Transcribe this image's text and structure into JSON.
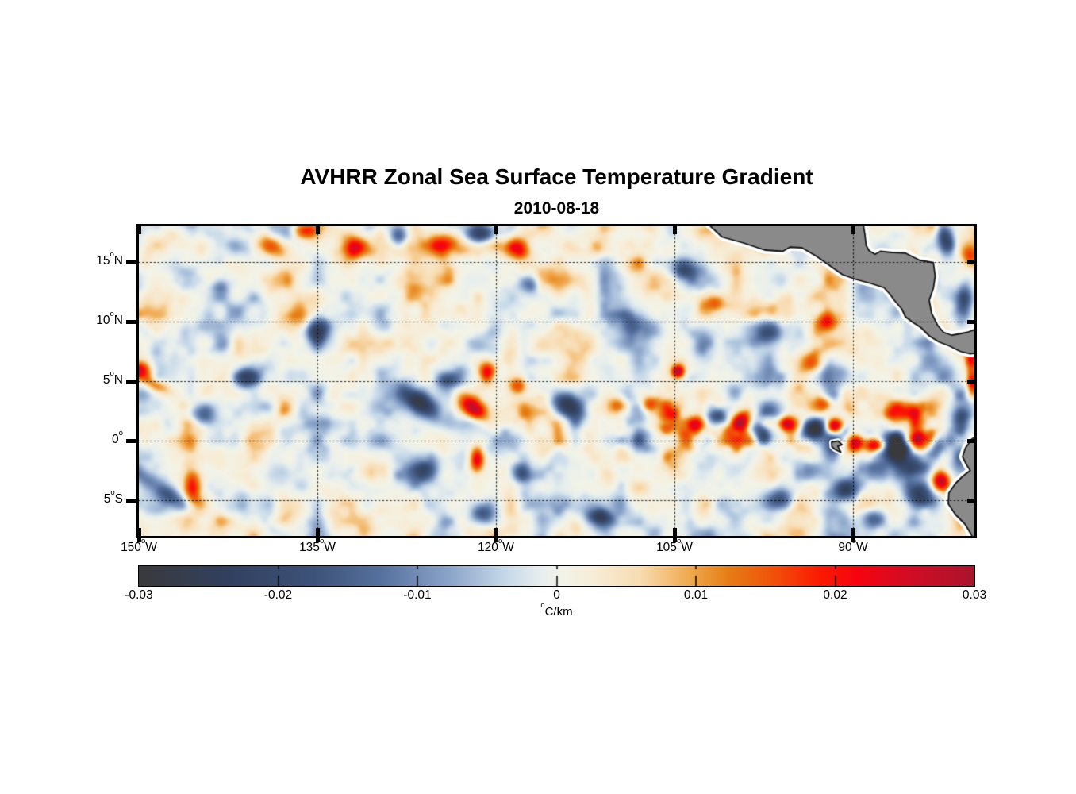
{
  "chart_data": {
    "type": "heatmap",
    "title": "AVHRR Zonal Sea Surface Temperature Gradient",
    "date": "2010-08-18",
    "units_label": "°C/km",
    "lon_range": [
      -150.0,
      -79.8
    ],
    "lat_range": [
      -8.0,
      18.0
    ],
    "grid_lons": [
      -135,
      -120,
      -105,
      -90
    ],
    "grid_lats": [
      15,
      10,
      5,
      0,
      -5
    ],
    "x_ticks": [
      {
        "lon": -150,
        "num": "150",
        "sup": "o",
        "suffix": "W"
      },
      {
        "lon": -135,
        "num": "135",
        "sup": "o",
        "suffix": "W"
      },
      {
        "lon": -120,
        "num": "120",
        "sup": "o",
        "suffix": "W"
      },
      {
        "lon": -105,
        "num": "105",
        "sup": "o",
        "suffix": "W"
      },
      {
        "lon": -90,
        "num": "90",
        "sup": "o",
        "suffix": "W"
      }
    ],
    "y_ticks": [
      {
        "lat": 15,
        "num": "15",
        "sup": "o",
        "suffix": "N"
      },
      {
        "lat": 10,
        "num": "10",
        "sup": "o",
        "suffix": "N"
      },
      {
        "lat": 5,
        "num": "5",
        "sup": "o",
        "suffix": "N"
      },
      {
        "lat": 0,
        "num": "0",
        "sup": "o",
        "suffix": ""
      },
      {
        "lat": -5,
        "num": "5",
        "sup": "o",
        "suffix": "S"
      }
    ],
    "colorbar": {
      "min": -0.03,
      "max": 0.03,
      "tick_values": [
        -0.03,
        -0.02,
        -0.01,
        0,
        0.01,
        0.02,
        0.03
      ],
      "tick_labels": [
        "-0.03",
        "-0.02",
        "-0.01",
        "0",
        "0.01",
        "0.02",
        "0.03"
      ],
      "unit_sup": "o",
      "unit_text": "C/km",
      "stops": [
        [
          0.0,
          "#3a3a3c"
        ],
        [
          0.105,
          "#32405f"
        ],
        [
          0.21,
          "#3d5379"
        ],
        [
          0.29,
          "#56719f"
        ],
        [
          0.37,
          "#8aa3c9"
        ],
        [
          0.435,
          "#c3d6e8"
        ],
        [
          0.48,
          "#e7eeee"
        ],
        [
          0.505,
          "#f2f3e8"
        ],
        [
          0.54,
          "#f7eeda"
        ],
        [
          0.6,
          "#f8dcb2"
        ],
        [
          0.66,
          "#f0a94e"
        ],
        [
          0.705,
          "#e67e15"
        ],
        [
          0.76,
          "#f1510a"
        ],
        [
          0.815,
          "#fb1a02"
        ],
        [
          0.86,
          "#f60410"
        ],
        [
          0.92,
          "#d30c24"
        ],
        [
          1.0,
          "#a9152d"
        ]
      ]
    },
    "land": {
      "fill": "#8a8a8a",
      "edge": "#141414",
      "halo": "#ffffff",
      "central_america": [
        [
          -102.6,
          19.5
        ],
        [
          -102.2,
          18.2
        ],
        [
          -101.0,
          17.1
        ],
        [
          -99.2,
          16.6
        ],
        [
          -97.4,
          16.0
        ],
        [
          -95.9,
          15.9
        ],
        [
          -95.3,
          16.25
        ],
        [
          -94.3,
          16.2
        ],
        [
          -93.1,
          15.5
        ],
        [
          -92.1,
          14.8
        ],
        [
          -90.9,
          13.95
        ],
        [
          -89.8,
          13.55
        ],
        [
          -88.5,
          13.2
        ],
        [
          -87.4,
          12.85
        ],
        [
          -86.9,
          12.3
        ],
        [
          -86.5,
          11.75
        ],
        [
          -85.9,
          11.05
        ],
        [
          -85.6,
          10.4
        ],
        [
          -85.0,
          9.95
        ],
        [
          -84.3,
          9.5
        ],
        [
          -83.6,
          8.8
        ],
        [
          -82.8,
          8.3
        ],
        [
          -81.9,
          7.95
        ],
        [
          -81.0,
          7.5
        ],
        [
          -80.2,
          7.3
        ],
        [
          -79.0,
          7.4
        ],
        [
          -79.0,
          9.6
        ],
        [
          -80.4,
          9.1
        ],
        [
          -81.7,
          8.85
        ],
        [
          -82.4,
          9.1
        ],
        [
          -82.9,
          9.7
        ],
        [
          -83.4,
          10.7
        ],
        [
          -83.6,
          11.8
        ],
        [
          -83.25,
          12.8
        ],
        [
          -83.1,
          13.8
        ],
        [
          -83.25,
          14.95
        ],
        [
          -84.4,
          15.15
        ],
        [
          -85.6,
          15.75
        ],
        [
          -86.7,
          15.8
        ],
        [
          -87.7,
          15.9
        ],
        [
          -88.15,
          15.65
        ],
        [
          -88.65,
          15.95
        ],
        [
          -88.9,
          16.4
        ],
        [
          -89.0,
          17.3
        ],
        [
          -89.35,
          19.5
        ]
      ],
      "south_america": [
        [
          -79.0,
          0.7
        ],
        [
          -80.0,
          0.15
        ],
        [
          -80.55,
          -0.6
        ],
        [
          -80.8,
          -1.35
        ],
        [
          -80.45,
          -2.05
        ],
        [
          -80.15,
          -2.5
        ],
        [
          -80.8,
          -3.0
        ],
        [
          -81.4,
          -3.6
        ],
        [
          -81.95,
          -4.4
        ],
        [
          -82.0,
          -5.3
        ],
        [
          -81.4,
          -6.2
        ],
        [
          -80.6,
          -7.0
        ],
        [
          -80.05,
          -7.9
        ],
        [
          -79.8,
          -9.0
        ],
        [
          -79.0,
          -9.0
        ]
      ],
      "galapagos": [
        [
          -91.8,
          -0.12
        ],
        [
          -91.25,
          -0.02
        ],
        [
          -90.92,
          -0.35
        ],
        [
          -91.28,
          -0.48
        ],
        [
          -91.02,
          -0.98
        ],
        [
          -91.55,
          -0.72
        ],
        [
          -91.78,
          -0.5
        ]
      ]
    },
    "field": {
      "noise": {
        "seeds": [
          11,
          23,
          47
        ],
        "cells": [
          2.7,
          1.35,
          0.75
        ],
        "weights": [
          0.55,
          0.33,
          0.12
        ],
        "gain": 0.62,
        "sharpen": 1.25,
        "equatorial_boost": {
          "amp": 1.1,
          "lat_center": 0.8,
          "lat_sigma": 2.4,
          "lon_onset": -113,
          "lon_scale": 3
        }
      },
      "features": [
        [
          -150.0,
          5.8,
          1.1,
          0.8,
          0.92,
          0
        ],
        [
          -148.6,
          4.7,
          1.4,
          0.6,
          0.5,
          -25
        ],
        [
          -143.1,
          13.1,
          0.9,
          0.9,
          -0.5,
          0
        ],
        [
          -138.8,
          16.3,
          1.6,
          1.0,
          0.62,
          -20
        ],
        [
          -136.0,
          17.6,
          1.0,
          0.7,
          0.55,
          0
        ],
        [
          -131.8,
          16.2,
          1.1,
          0.9,
          0.72,
          0
        ],
        [
          -128.1,
          17.2,
          1.0,
          0.8,
          -0.58,
          0
        ],
        [
          -124.6,
          16.4,
          1.3,
          0.9,
          0.7,
          15
        ],
        [
          -121.3,
          17.4,
          1.3,
          0.8,
          -0.72,
          0
        ],
        [
          -118.0,
          16.1,
          0.9,
          0.9,
          0.6,
          0
        ],
        [
          -111.2,
          16.2,
          1.0,
          0.8,
          0.45,
          0
        ],
        [
          -117.1,
          13.1,
          1.0,
          0.8,
          -0.5,
          0
        ],
        [
          -136.8,
          10.6,
          1.9,
          1.4,
          0.6,
          10
        ],
        [
          -135.0,
          9.2,
          0.9,
          1.1,
          -0.82,
          0
        ],
        [
          -104.3,
          14.4,
          1.1,
          0.9,
          -0.62,
          0
        ],
        [
          -108.6,
          9.7,
          1.4,
          1.1,
          -0.48,
          0
        ],
        [
          -97.1,
          9.1,
          1.4,
          1.1,
          -0.58,
          20
        ],
        [
          -101.6,
          11.6,
          0.9,
          0.8,
          0.5,
          0
        ],
        [
          -92.1,
          9.9,
          0.9,
          0.8,
          0.58,
          0
        ],
        [
          -93.6,
          6.6,
          0.9,
          0.9,
          0.45,
          0
        ],
        [
          -141.1,
          5.3,
          0.8,
          0.8,
          -0.48,
          0
        ],
        [
          -144.6,
          2.1,
          1.1,
          0.9,
          -0.5,
          0
        ],
        [
          -150.2,
          -2.6,
          1.2,
          0.7,
          -0.5,
          -30
        ],
        [
          -147.4,
          -4.6,
          2.3,
          0.8,
          -0.58,
          -35
        ],
        [
          -145.5,
          -3.6,
          0.75,
          1.9,
          0.62,
          8
        ],
        [
          -126.6,
          3.4,
          2.0,
          0.9,
          -0.95,
          -38
        ],
        [
          -121.9,
          2.8,
          1.4,
          0.8,
          0.92,
          -40
        ],
        [
          -124.1,
          5.1,
          1.0,
          0.7,
          -0.5,
          0
        ],
        [
          -120.7,
          5.7,
          0.7,
          0.9,
          0.78,
          0
        ],
        [
          -118.2,
          4.6,
          0.8,
          0.8,
          0.55,
          0
        ],
        [
          -114.2,
          3.2,
          1.4,
          0.8,
          -0.62,
          -30
        ],
        [
          -109.6,
          2.9,
          1.0,
          0.8,
          0.55,
          -20
        ],
        [
          -107.1,
          3.1,
          1.1,
          0.8,
          0.6,
          25
        ],
        [
          -104.7,
          5.8,
          0.55,
          0.55,
          0.95,
          0
        ],
        [
          -121.6,
          -1.6,
          0.6,
          1.1,
          0.68,
          0
        ],
        [
          -126.1,
          -2.6,
          1.2,
          0.9,
          -0.48,
          20
        ],
        [
          -117.9,
          -2.7,
          0.8,
          0.8,
          -0.52,
          0
        ],
        [
          -111.4,
          -6.4,
          0.9,
          0.7,
          -0.68,
          0
        ],
        [
          -121.1,
          -6.1,
          1.0,
          0.8,
          -0.52,
          0
        ],
        [
          -103.2,
          1.3,
          0.9,
          0.8,
          0.9,
          0
        ],
        [
          -101.3,
          1.9,
          0.9,
          0.9,
          -0.85,
          0
        ],
        [
          -99.3,
          1.6,
          0.8,
          0.8,
          0.85,
          0
        ],
        [
          -97.6,
          0.6,
          1.0,
          0.9,
          -0.9,
          30
        ],
        [
          -95.6,
          1.4,
          0.7,
          0.7,
          0.9,
          0
        ],
        [
          -93.6,
          0.8,
          1.0,
          0.9,
          -0.95,
          0
        ],
        [
          -91.5,
          1.2,
          0.7,
          0.7,
          0.95,
          0
        ],
        [
          -89.8,
          -0.2,
          0.7,
          0.7,
          0.88,
          0
        ],
        [
          -88.0,
          -0.4,
          1.0,
          0.6,
          0.9,
          0
        ],
        [
          -86.3,
          -0.6,
          1.2,
          0.8,
          -0.88,
          -20
        ],
        [
          -84.6,
          0.3,
          0.8,
          0.8,
          0.5,
          0
        ],
        [
          -83.0,
          -0.6,
          0.8,
          0.9,
          -0.6,
          0
        ],
        [
          -85.1,
          -2.1,
          1.2,
          0.9,
          -0.6,
          0
        ],
        [
          -82.6,
          -3.3,
          0.8,
          1.0,
          1.0,
          0
        ],
        [
          -84.2,
          -4.6,
          1.4,
          1.1,
          -0.88,
          -20
        ],
        [
          -90.6,
          -4.1,
          1.2,
          0.9,
          -0.62,
          0
        ],
        [
          -96.1,
          -4.9,
          1.2,
          0.9,
          -0.52,
          0
        ],
        [
          -88.1,
          -6.6,
          1.0,
          0.8,
          -0.58,
          0
        ],
        [
          -92.6,
          3.1,
          0.9,
          0.8,
          0.55,
          0
        ],
        [
          -82.2,
          16.8,
          0.7,
          1.4,
          -0.85,
          10
        ],
        [
          -80.2,
          15.6,
          0.8,
          1.0,
          0.45,
          0
        ],
        [
          -80.6,
          11.9,
          0.7,
          1.4,
          -0.55,
          0
        ],
        [
          -80.0,
          4.8,
          0.5,
          1.1,
          0.85,
          0
        ],
        [
          -80.1,
          6.9,
          0.5,
          1.0,
          0.55,
          0
        ],
        [
          -80.9,
          2.1,
          0.7,
          1.2,
          -0.55,
          0
        ]
      ]
    }
  }
}
